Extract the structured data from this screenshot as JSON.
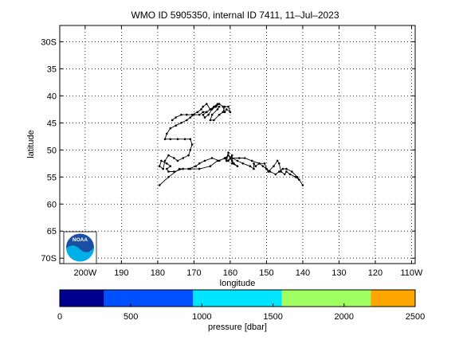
{
  "chart_data": {
    "type": "scatter",
    "title": "WMO ID 5905350, internal ID 7411, 11–Jul–2023",
    "xlabel": "longitude",
    "ylabel": "latitude",
    "xlim": [
      -207,
      -109
    ],
    "ylim": [
      -71,
      -27
    ],
    "xticks": [
      {
        "value": -200,
        "label": "200W"
      },
      {
        "value": -190,
        "label": "190"
      },
      {
        "value": -180,
        "label": "180"
      },
      {
        "value": -170,
        "label": "170"
      },
      {
        "value": -160,
        "label": "160"
      },
      {
        "value": -150,
        "label": "150"
      },
      {
        "value": -140,
        "label": "140"
      },
      {
        "value": -130,
        "label": "130"
      },
      {
        "value": -120,
        "label": "120"
      },
      {
        "value": -110,
        "label": "110W"
      }
    ],
    "yticks": [
      {
        "value": -30,
        "label": "30S"
      },
      {
        "value": -35,
        "label": "35"
      },
      {
        "value": -40,
        "label": "40"
      },
      {
        "value": -45,
        "label": "45"
      },
      {
        "value": -50,
        "label": "50"
      },
      {
        "value": -55,
        "label": "55"
      },
      {
        "value": -60,
        "label": "60"
      },
      {
        "value": -65,
        "label": "65"
      },
      {
        "value": -70,
        "label": "70S"
      }
    ],
    "grid": true,
    "series": [
      {
        "x": [
          -179.5,
          -177,
          -174,
          -171,
          -168.5,
          -165.5,
          -163.5,
          -161,
          -160.5,
          -161,
          -159.5,
          -157.5,
          -156,
          -154,
          -152,
          -151,
          -150,
          -149.5,
          -148,
          -147,
          -146.5,
          -146,
          -145,
          -144.5,
          -143.5,
          -142,
          -141,
          -140,
          -141.5,
          -143,
          -144.5,
          -145.5,
          -146.5,
          -147.5,
          -149,
          -150,
          -150.5,
          -152,
          -153,
          -153.5,
          -153.5,
          -154.5,
          -156.5,
          -158,
          -159.5,
          -159.5,
          -158,
          -159,
          -160,
          -160.5,
          -159.5,
          -159.5,
          -160.5,
          -161.5,
          -161,
          -161.5,
          -163,
          -165,
          -167,
          -168.5,
          -169.5,
          -171.5,
          -173,
          -175.5,
          -177,
          -177.5,
          -176.5,
          -177.5,
          -179,
          -179.5,
          -178.5,
          -178,
          -177,
          -175.5,
          -174.5,
          -173,
          -171.5,
          -171,
          -170.5,
          -171,
          -172.5,
          -174.5,
          -176.5,
          -178,
          -177.5,
          -176.5,
          -175,
          -173.5,
          -172,
          -171,
          -170,
          -168.5,
          -167.5,
          -166.5,
          -165.5,
          -164.5,
          -163.5,
          -164,
          -165,
          -166,
          -167,
          -167.5,
          -166.5,
          -165.5,
          -164,
          -163,
          -162,
          -161.5,
          -161,
          -160,
          -160.5,
          -161.5,
          -162,
          -163,
          -164.5,
          -165.5,
          -165,
          -163.5,
          -163,
          -164,
          -165.5,
          -166.5,
          -167.5,
          -168,
          -169,
          -170.5,
          -172,
          -173.5,
          -175,
          -176
        ],
        "y": [
          -56.5,
          -55,
          -53.5,
          -53.5,
          -53.5,
          -53,
          -52,
          -51.5,
          -50.5,
          -52,
          -51.5,
          -51.5,
          -51.5,
          -52,
          -52.5,
          -53,
          -53.5,
          -54,
          -53,
          -52,
          -52.5,
          -54,
          -54.5,
          -54,
          -54.5,
          -55,
          -55.5,
          -56.5,
          -55,
          -54,
          -53.5,
          -53.5,
          -54,
          -54.5,
          -54,
          -53.5,
          -52.5,
          -52.5,
          -53,
          -52.5,
          -53.5,
          -53,
          -52.5,
          -52,
          -51.5,
          -52.5,
          -53,
          -52.5,
          -51.5,
          -52,
          -51,
          -52,
          -51,
          -51.5,
          -52,
          -51.5,
          -52,
          -51.5,
          -52,
          -52.5,
          -53,
          -53.5,
          -53.5,
          -54,
          -54,
          -53.5,
          -53,
          -52.5,
          -52,
          -53,
          -53.5,
          -52,
          -51,
          -51.5,
          -52,
          -51.5,
          -51,
          -50,
          -49,
          -48,
          -48,
          -48,
          -48,
          -48,
          -47,
          -46,
          -45.5,
          -45,
          -44.5,
          -44,
          -43.5,
          -43.5,
          -43,
          -43,
          -42.5,
          -42,
          -41.5,
          -42,
          -42.5,
          -43.5,
          -44,
          -43.5,
          -43,
          -42.5,
          -42,
          -41.5,
          -42,
          -43,
          -42.5,
          -43,
          -42,
          -42,
          -43,
          -43.5,
          -44.5,
          -44.5,
          -43.5,
          -42.5,
          -42,
          -42,
          -42.5,
          -41.5,
          -42,
          -42.5,
          -43,
          -43.5,
          -43.5,
          -43.5,
          -44,
          -44.5
        ]
      }
    ],
    "colorbar": {
      "label": "pressure [dbar]",
      "ticks": [
        "0",
        "500",
        "1000",
        "1500",
        "2000",
        "2500"
      ],
      "range": [
        0,
        2500
      ],
      "bands": [
        {
          "from": 0,
          "to": 312,
          "color": "#00008f"
        },
        {
          "from": 312,
          "to": 938,
          "color": "#0050ff"
        },
        {
          "from": 938,
          "to": 1562,
          "color": "#00e5ff"
        },
        {
          "from": 1562,
          "to": 2188,
          "color": "#9fff60"
        },
        {
          "from": 2188,
          "to": 2500,
          "color": "#ffa500"
        }
      ]
    },
    "logo": {
      "text": "NOAA",
      "colors": [
        "#1a4fa3",
        "#00aee8"
      ]
    }
  }
}
